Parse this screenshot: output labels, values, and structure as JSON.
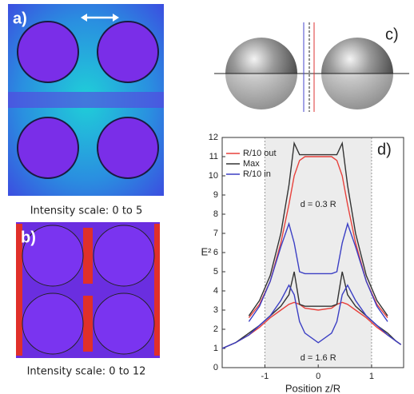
{
  "panels": {
    "a": {
      "label": "a)",
      "caption": "Intensity scale: 0 to 5"
    },
    "b": {
      "label": "b)",
      "caption": "Intensity scale: 0 to 12"
    },
    "c": {
      "label": "c)"
    }
  },
  "chart_data": {
    "type": "line",
    "label": "d)",
    "x_label": "Position z/R",
    "y_label": "E²",
    "xlim": [
      -1.8,
      1.6
    ],
    "xticks": [
      -1,
      0,
      1
    ],
    "ylim": [
      0,
      12
    ],
    "yticks": [
      0,
      1,
      2,
      3,
      4,
      5,
      6,
      7,
      8,
      9,
      10,
      11,
      12
    ],
    "shade": [
      -1,
      1
    ],
    "shade_color": "#ececec",
    "annotations": [
      "d = 0.3 R",
      "d = 1.6 R"
    ],
    "x": [
      -1.8,
      -1.55,
      -1.3,
      -1.1,
      -0.9,
      -0.7,
      -0.55,
      -0.45,
      -0.35,
      -0.25,
      0,
      0.25,
      0.35,
      0.45,
      0.55,
      0.7,
      0.9,
      1.1,
      1.3,
      1.45,
      1.55
    ],
    "series": [
      {
        "name": "R/10 out",
        "color": "#e8413c",
        "values": [
          null,
          null,
          2.6,
          3.3,
          4.5,
          6.5,
          8.5,
          10,
          10.8,
          11,
          11,
          11,
          10.8,
          10,
          8.5,
          6.5,
          4.5,
          3.3,
          2.6,
          null,
          null
        ]
      },
      {
        "name": "Max",
        "color": "#333333",
        "values": [
          null,
          null,
          2.7,
          3.5,
          4.8,
          7,
          9.5,
          11.7,
          11.1,
          11.1,
          11.1,
          11.1,
          11.1,
          11.7,
          9.5,
          7,
          4.8,
          3.5,
          2.7,
          null,
          null
        ]
      },
      {
        "name": "R/10 in",
        "color": "#3b3fc4",
        "values": [
          null,
          null,
          2.4,
          3.2,
          4.5,
          6.3,
          7.5,
          6.5,
          5,
          4.9,
          4.9,
          4.9,
          5,
          6.5,
          7.5,
          6.3,
          4.5,
          3.2,
          2.4,
          null,
          null
        ]
      },
      {
        "color": "#e8413c",
        "values": [
          1,
          1.3,
          1.7,
          2.1,
          2.6,
          3,
          3.3,
          3.4,
          3.3,
          3.1,
          3,
          3.1,
          3.3,
          3.4,
          3.3,
          3,
          2.6,
          2.1,
          1.7,
          1.4,
          1.2
        ]
      },
      {
        "color": "#333333",
        "values": [
          1,
          1.3,
          1.8,
          2.2,
          2.7,
          3.2,
          3.8,
          5,
          3.3,
          3.2,
          3.2,
          3.2,
          3.3,
          5,
          3.8,
          3.2,
          2.7,
          2.2,
          1.8,
          1.4,
          1.2
        ]
      },
      {
        "color": "#3b3fc4",
        "values": [
          1,
          1.3,
          1.7,
          2.2,
          2.7,
          3.5,
          4.3,
          3.8,
          2.4,
          1.8,
          1.3,
          1.8,
          2.4,
          3.8,
          4.3,
          3.5,
          2.7,
          2.2,
          1.7,
          1.4,
          1.2
        ]
      }
    ]
  }
}
